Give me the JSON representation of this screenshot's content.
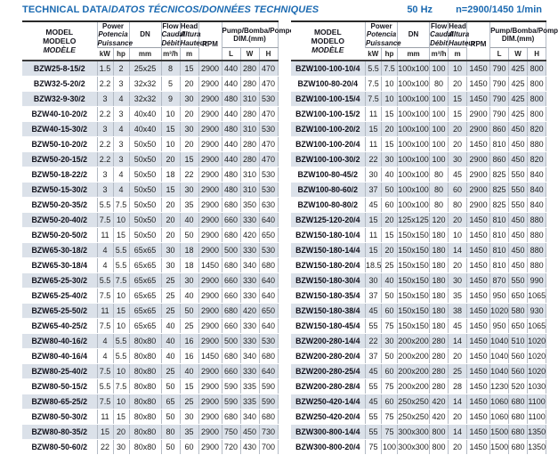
{
  "page": {
    "title_en": "TECHNICAL DATA/",
    "title_intl": "DATOS TÉCNICOS/DONNÉES TECHNIQUES",
    "frequency": "50 Hz",
    "speed": "n=2900/1450 1/min"
  },
  "colors": {
    "accent_blue": "#1b6ab1",
    "row_stripe": "#dbe1e9",
    "grid_line": "#b3bac4"
  },
  "header": {
    "model": [
      "MODEL",
      "MODELO",
      "MODÈLE"
    ],
    "power": [
      "Power",
      "Potencia",
      "Puissance"
    ],
    "dn": "DN",
    "flow": [
      "Flow",
      "Caudal",
      "Débit"
    ],
    "head": [
      "Head",
      "Altura",
      "Hauteur"
    ],
    "rpm": "RPM",
    "dim": [
      "Pump/Bomba/Pompe",
      "DIM.(mm)"
    ],
    "units": {
      "kw": "kW",
      "hp": "hp",
      "dn": "mm",
      "flow": "m³/h",
      "head": "m",
      "l": "L",
      "w": "W",
      "h": "H"
    }
  },
  "tables": [
    {
      "rows": [
        [
          "BZW25-8-15/2",
          "1.5",
          "2",
          "25x25",
          "8",
          "15",
          "2900",
          "440",
          "280",
          "470"
        ],
        [
          "BZW32-5-20/2",
          "2.2",
          "3",
          "32x32",
          "5",
          "20",
          "2900",
          "440",
          "280",
          "470"
        ],
        [
          "BZW32-9-30/2",
          "3",
          "4",
          "32x32",
          "9",
          "30",
          "2900",
          "480",
          "310",
          "530"
        ],
        [
          "BZW40-10-20/2",
          "2.2",
          "3",
          "40x40",
          "10",
          "20",
          "2900",
          "440",
          "280",
          "470"
        ],
        [
          "BZW40-15-30/2",
          "3",
          "4",
          "40x40",
          "15",
          "30",
          "2900",
          "480",
          "310",
          "530"
        ],
        [
          "BZW50-10-20/2",
          "2.2",
          "3",
          "50x50",
          "10",
          "20",
          "2900",
          "440",
          "280",
          "470"
        ],
        [
          "BZW50-20-15/2",
          "2.2",
          "3",
          "50x50",
          "20",
          "15",
          "2900",
          "440",
          "280",
          "470"
        ],
        [
          "BZW50-18-22/2",
          "3",
          "4",
          "50x50",
          "18",
          "22",
          "2900",
          "480",
          "310",
          "530"
        ],
        [
          "BZW50-15-30/2",
          "3",
          "4",
          "50x50",
          "15",
          "30",
          "2900",
          "480",
          "310",
          "530"
        ],
        [
          "BZW50-20-35/2",
          "5.5",
          "7.5",
          "50x50",
          "20",
          "35",
          "2900",
          "680",
          "350",
          "630"
        ],
        [
          "BZW50-20-40/2",
          "7.5",
          "10",
          "50x50",
          "20",
          "40",
          "2900",
          "660",
          "330",
          "640"
        ],
        [
          "BZW50-20-50/2",
          "11",
          "15",
          "50x50",
          "20",
          "50",
          "2900",
          "680",
          "420",
          "650"
        ],
        [
          "BZW65-30-18/2",
          "4",
          "5.5",
          "65x65",
          "30",
          "18",
          "2900",
          "500",
          "330",
          "530"
        ],
        [
          "BZW65-30-18/4",
          "4",
          "5.5",
          "65x65",
          "30",
          "18",
          "1450",
          "680",
          "340",
          "680"
        ],
        [
          "BZW65-25-30/2",
          "5.5",
          "7.5",
          "65x65",
          "25",
          "30",
          "2900",
          "660",
          "330",
          "640"
        ],
        [
          "BZW65-25-40/2",
          "7.5",
          "10",
          "65x65",
          "25",
          "40",
          "2900",
          "660",
          "330",
          "640"
        ],
        [
          "BZW65-25-50/2",
          "11",
          "15",
          "65x65",
          "25",
          "50",
          "2900",
          "680",
          "420",
          "650"
        ],
        [
          "BZW65-40-25/2",
          "7.5",
          "10",
          "65x65",
          "40",
          "25",
          "2900",
          "660",
          "330",
          "640"
        ],
        [
          "BZW80-40-16/2",
          "4",
          "5.5",
          "80x80",
          "40",
          "16",
          "2900",
          "500",
          "330",
          "530"
        ],
        [
          "BZW80-40-16/4",
          "4",
          "5.5",
          "80x80",
          "40",
          "16",
          "1450",
          "680",
          "340",
          "680"
        ],
        [
          "BZW80-25-40/2",
          "7.5",
          "10",
          "80x80",
          "25",
          "40",
          "2900",
          "660",
          "330",
          "640"
        ],
        [
          "BZW80-50-15/2",
          "5.5",
          "7.5",
          "80x80",
          "50",
          "15",
          "2900",
          "590",
          "335",
          "590"
        ],
        [
          "BZW80-65-25/2",
          "7.5",
          "10",
          "80x80",
          "65",
          "25",
          "2900",
          "590",
          "335",
          "590"
        ],
        [
          "BZW80-50-30/2",
          "11",
          "15",
          "80x80",
          "50",
          "30",
          "2900",
          "680",
          "340",
          "680"
        ],
        [
          "BZW80-80-35/2",
          "15",
          "20",
          "80x80",
          "80",
          "35",
          "2900",
          "750",
          "450",
          "730"
        ],
        [
          "BZW80-50-60/2",
          "22",
          "30",
          "80x80",
          "50",
          "60",
          "2900",
          "720",
          "430",
          "700"
        ]
      ]
    },
    {
      "rows": [
        [
          "BZW100-100-10/4",
          "5.5",
          "7.5",
          "100x100",
          "100",
          "10",
          "1450",
          "790",
          "425",
          "800"
        ],
        [
          "BZW100-80-20/4",
          "7.5",
          "10",
          "100x100",
          "80",
          "20",
          "1450",
          "790",
          "425",
          "800"
        ],
        [
          "BZW100-100-15/4",
          "7.5",
          "10",
          "100x100",
          "100",
          "15",
          "1450",
          "790",
          "425",
          "800"
        ],
        [
          "BZW100-100-15/2",
          "11",
          "15",
          "100x100",
          "100",
          "15",
          "2900",
          "790",
          "425",
          "800"
        ],
        [
          "BZW100-100-20/2",
          "15",
          "20",
          "100x100",
          "100",
          "20",
          "2900",
          "860",
          "450",
          "820"
        ],
        [
          "BZW100-100-20/4",
          "11",
          "15",
          "100x100",
          "100",
          "20",
          "1450",
          "810",
          "450",
          "880"
        ],
        [
          "BZW100-100-30/2",
          "22",
          "30",
          "100x100",
          "100",
          "30",
          "2900",
          "860",
          "450",
          "820"
        ],
        [
          "BZW100-80-45/2",
          "30",
          "40",
          "100x100",
          "80",
          "45",
          "2900",
          "825",
          "550",
          "840"
        ],
        [
          "BZW100-80-60/2",
          "37",
          "50",
          "100x100",
          "80",
          "60",
          "2900",
          "825",
          "550",
          "840"
        ],
        [
          "BZW100-80-80/2",
          "45",
          "60",
          "100x100",
          "80",
          "80",
          "2900",
          "825",
          "550",
          "840"
        ],
        [
          "BZW125-120-20/4",
          "15",
          "20",
          "125x125",
          "120",
          "20",
          "1450",
          "810",
          "450",
          "880"
        ],
        [
          "BZW150-180-10/4",
          "11",
          "15",
          "150x150",
          "180",
          "10",
          "1450",
          "810",
          "450",
          "880"
        ],
        [
          "BZW150-180-14/4",
          "15",
          "20",
          "150x150",
          "180",
          "14",
          "1450",
          "810",
          "450",
          "880"
        ],
        [
          "BZW150-180-20/4",
          "18.5",
          "25",
          "150x150",
          "180",
          "20",
          "1450",
          "810",
          "450",
          "880"
        ],
        [
          "BZW150-180-30/4",
          "30",
          "40",
          "150x150",
          "180",
          "30",
          "1450",
          "870",
          "550",
          "990"
        ],
        [
          "BZW150-180-35/4",
          "37",
          "50",
          "150x150",
          "180",
          "35",
          "1450",
          "950",
          "650",
          "1065"
        ],
        [
          "BZW150-180-38/4",
          "45",
          "60",
          "150x150",
          "180",
          "38",
          "1450",
          "1020",
          "580",
          "930"
        ],
        [
          "BZW150-180-45/4",
          "55",
          "75",
          "150x150",
          "180",
          "45",
          "1450",
          "950",
          "650",
          "1065"
        ],
        [
          "BZW200-280-14/4",
          "22",
          "30",
          "200x200",
          "280",
          "14",
          "1450",
          "1040",
          "510",
          "1020"
        ],
        [
          "BZW200-280-20/4",
          "37",
          "50",
          "200x200",
          "280",
          "20",
          "1450",
          "1040",
          "560",
          "1020"
        ],
        [
          "BZW200-280-25/4",
          "45",
          "60",
          "200x200",
          "280",
          "25",
          "1450",
          "1040",
          "560",
          "1020"
        ],
        [
          "BZW200-280-28/4",
          "55",
          "75",
          "200x200",
          "280",
          "28",
          "1450",
          "1230",
          "520",
          "1030"
        ],
        [
          "BZW250-420-14/4",
          "45",
          "60",
          "250x250",
          "420",
          "14",
          "1450",
          "1060",
          "680",
          "1100"
        ],
        [
          "BZW250-420-20/4",
          "55",
          "75",
          "250x250",
          "420",
          "20",
          "1450",
          "1060",
          "680",
          "1100"
        ],
        [
          "BZW300-800-14/4",
          "55",
          "75",
          "300x300",
          "800",
          "14",
          "1450",
          "1500",
          "680",
          "1350"
        ],
        [
          "BZW300-800-20/4",
          "75",
          "100",
          "300x300",
          "800",
          "20",
          "1450",
          "1500",
          "680",
          "1350"
        ]
      ]
    }
  ]
}
